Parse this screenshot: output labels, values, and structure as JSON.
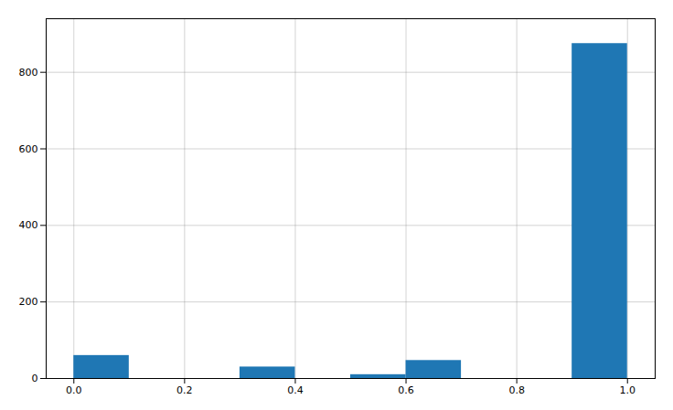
{
  "chart_data": {
    "type": "histogram",
    "bins": [
      0.0,
      0.1,
      0.2,
      0.3,
      0.4,
      0.5,
      0.6,
      0.7,
      0.8,
      0.9,
      1.0
    ],
    "values": [
      60,
      0,
      0,
      30,
      0,
      10,
      47,
      0,
      0,
      875
    ],
    "color": "#1f77b4",
    "xlim": [
      -0.05,
      1.05
    ],
    "xticks": [
      {
        "value": 0.0,
        "label": "0.0"
      },
      0.2,
      0.4,
      0.6,
      0.8,
      {
        "value": 1.0,
        "label": "1.0"
      }
    ],
    "ylim": [
      0,
      940
    ],
    "yticks": [
      0,
      200,
      400,
      600,
      800
    ],
    "grid": true
  }
}
